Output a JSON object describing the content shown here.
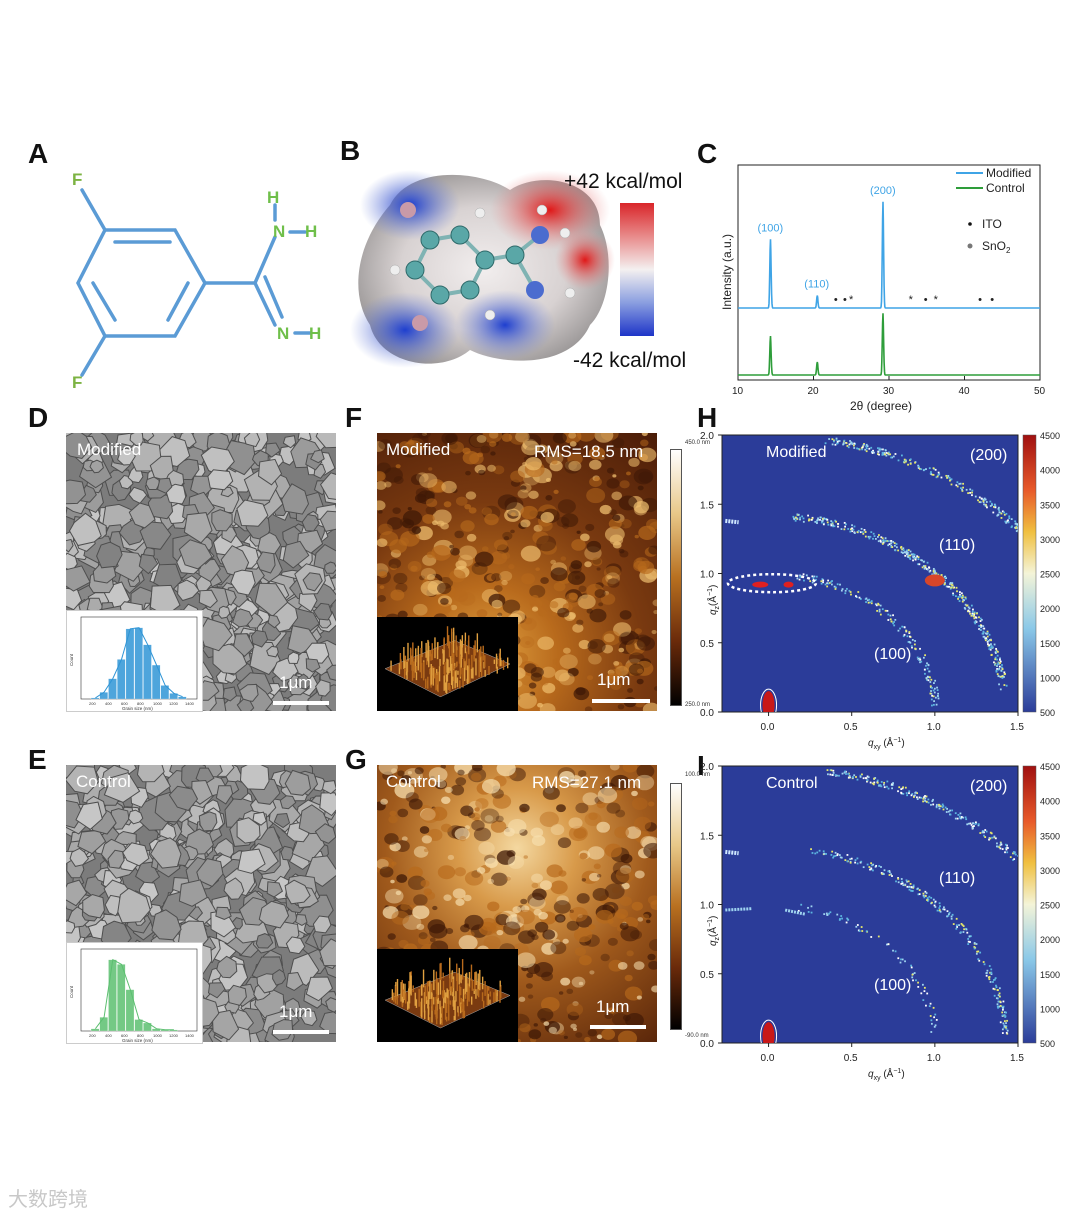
{
  "panels": {
    "A": "A",
    "B": "B",
    "C": "C",
    "D": "D",
    "E": "E",
    "F": "F",
    "G": "G",
    "H": "H",
    "I": "I"
  },
  "structure": {
    "atoms": {
      "F1": "F",
      "F2": "F",
      "N1": "N",
      "N2": "N",
      "H1": "H",
      "H2": "H",
      "H3": "H"
    },
    "bond_color": "#5b9bd5",
    "fluorine_color": "#7cb342",
    "nitrogen_color": "#6fbf4a"
  },
  "esp": {
    "max_label": "+42 kcal/mol",
    "min_label": "-42 kcal/mol"
  },
  "chart_data": {
    "type": "line",
    "title": "",
    "xlabel": "2θ (degree)",
    "ylabel": "Intensity (a.u.)",
    "xlim": [
      10,
      50
    ],
    "xticks": [
      "10",
      "20",
      "30",
      "40",
      "50"
    ],
    "series": [
      {
        "name": "Modified",
        "color": "#3fa4e6",
        "peaks": [
          {
            "x": 14.3,
            "h": 0.55,
            "label": "(100)"
          },
          {
            "x": 20.5,
            "h": 0.1,
            "label": "(110)"
          },
          {
            "x": 29.2,
            "h": 0.85,
            "label": "(200)"
          }
        ]
      },
      {
        "name": "Control",
        "color": "#2e9d3a",
        "peaks": [
          {
            "x": 14.3,
            "h": 0.6
          },
          {
            "x": 20.5,
            "h": 0.2
          },
          {
            "x": 29.2,
            "h": 0.95
          }
        ]
      }
    ],
    "legend": {
      "position": "top-right",
      "items": [
        "Modified",
        "Control"
      ]
    },
    "markers_legend": {
      "ito": "ITO",
      "sno2": "SnO",
      "sno2_sub": "2"
    },
    "marker_positions_modified": [
      {
        "x": 23.1,
        "sym": "•"
      },
      {
        "x": 24.3,
        "sym": "•"
      },
      {
        "x": 25.1,
        "sym": "*"
      },
      {
        "x": 33.0,
        "sym": "*"
      },
      {
        "x": 35.0,
        "sym": "•"
      },
      {
        "x": 36.3,
        "sym": "*"
      },
      {
        "x": 42.2,
        "sym": "•"
      },
      {
        "x": 43.8,
        "sym": "•"
      }
    ]
  },
  "sem": {
    "modified_label": "Modified",
    "control_label": "Control",
    "scale": "1μm",
    "hist_xlabel": "Grain size (nm)",
    "hist_ylabel": "Count",
    "hist_xticks": [
      "200",
      "400",
      "600",
      "800",
      "1000",
      "1200",
      "1400"
    ],
    "modified_hist": {
      "color": "#2f95d6",
      "counts": [
        1,
        6,
        18,
        35,
        62,
        63,
        48,
        30,
        12,
        5,
        2
      ]
    },
    "control_hist": {
      "color": "#5cbf70",
      "counts": [
        2,
        12,
        62,
        58,
        36,
        10,
        7,
        2,
        1,
        1
      ]
    }
  },
  "afm": {
    "modified_label": "Modified",
    "modified_rms": "RMS=18.5 nm",
    "control_label": "Control",
    "control_rms": "RMS=27.1 nm",
    "scale": "1μm",
    "modified_cbar_top": "450.0 nm",
    "modified_cbar_bottom": "250.0 nm",
    "control_cbar_top": "100.0 nm",
    "control_cbar_bottom": "-90.0 nm"
  },
  "giwaxs": {
    "modified_label": "Modified",
    "control_label": "Control",
    "ring_200": "(200)",
    "ring_110": "(110)",
    "ring_100": "(100)",
    "ylabel": "q",
    "ylabel_sub": "z",
    "ylabel_unit": "(Å",
    "xlabel": "q",
    "xlabel_sub": "xy",
    "xlabel_unit": "(Å",
    "unit_sup": "−1",
    "unit_close": ")",
    "xticks": [
      "0.0",
      "0.5",
      "1.0",
      "1.5"
    ],
    "yticks": [
      "0.0",
      "0.5",
      "1.0",
      "1.5",
      "2.0"
    ],
    "cbar_ticks": [
      "4500",
      "4000",
      "3500",
      "3000",
      "2500",
      "2000",
      "1500",
      "1000",
      "500"
    ]
  },
  "watermark": "大数跨境"
}
